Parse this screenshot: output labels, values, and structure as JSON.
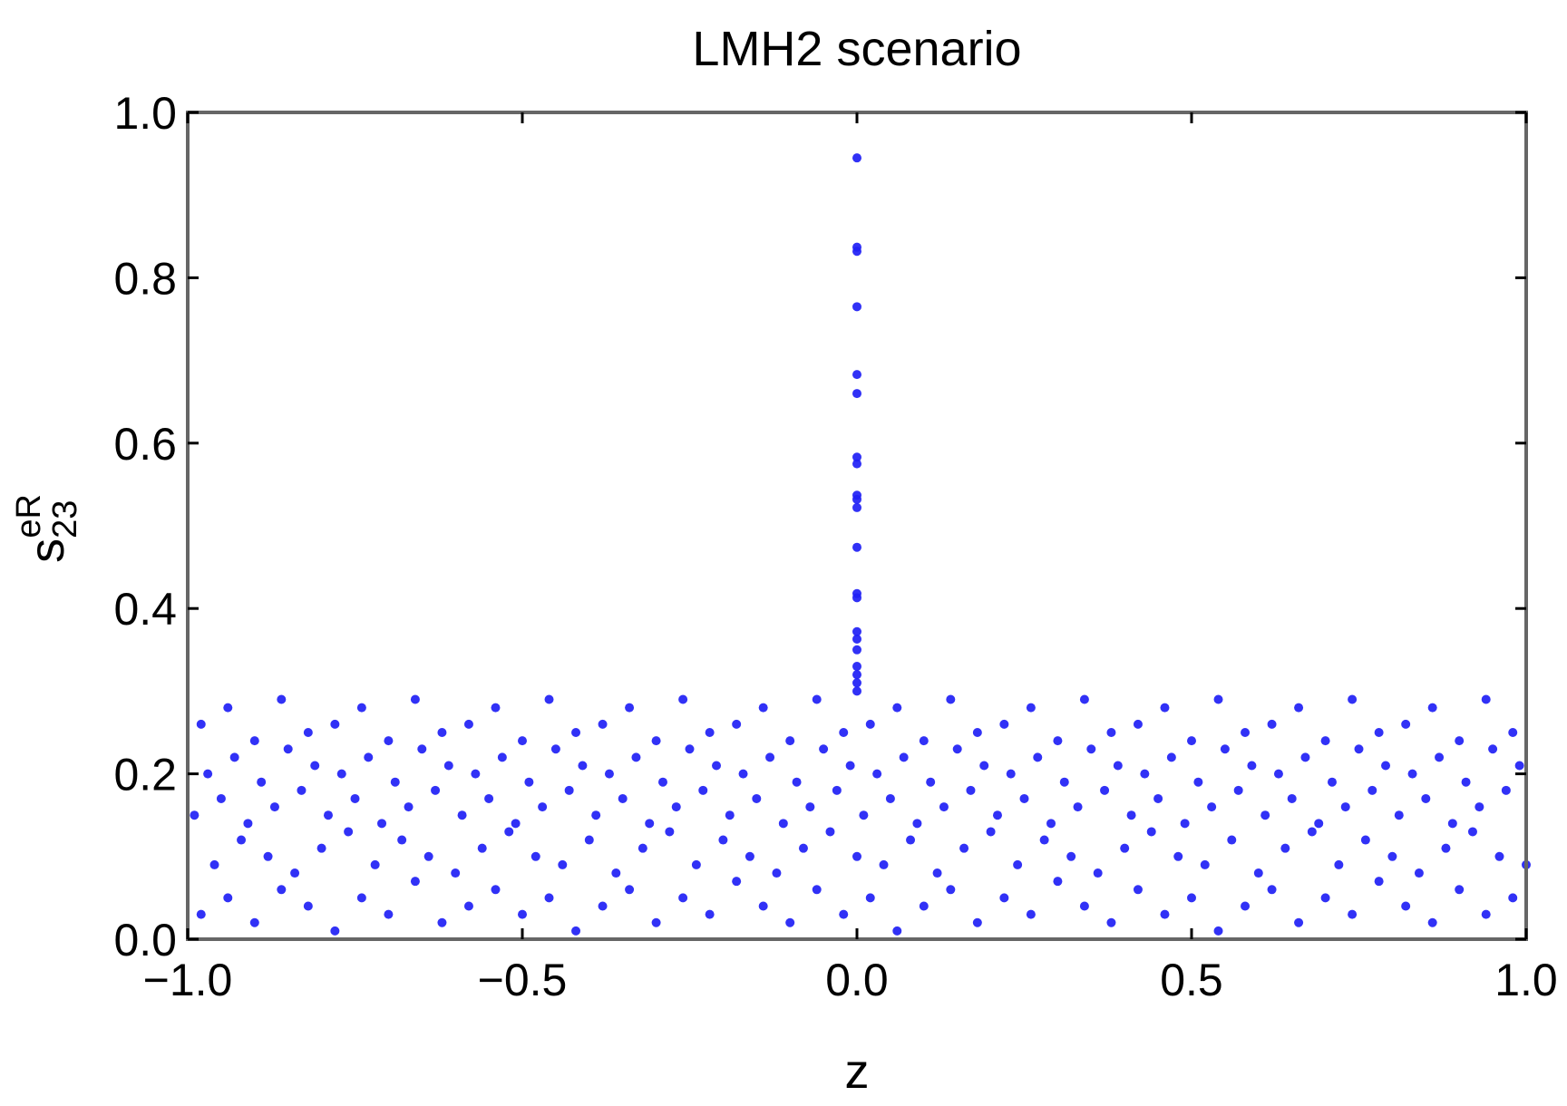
{
  "chart_data": {
    "type": "scatter",
    "title": "LMH2 scenario",
    "x_label": "z",
    "y_label": {
      "base": "s",
      "sub": "23",
      "sup": "eR"
    },
    "color": "#1f1ff5",
    "xlim": [
      -1,
      1
    ],
    "ylim": [
      0,
      1
    ],
    "xticks": [
      {
        "value": -1,
        "label": "−1.0"
      },
      {
        "value": -0.5,
        "label": "−0.5"
      },
      {
        "value": 0,
        "label": "0.0"
      },
      {
        "value": 0.5,
        "label": "0.5"
      },
      {
        "value": 1,
        "label": "1.0"
      }
    ],
    "yticks": [
      {
        "value": 0,
        "label": "0.0"
      },
      {
        "value": 0.2,
        "label": "0.2"
      },
      {
        "value": 0.4,
        "label": "0.4"
      },
      {
        "value": 0.6,
        "label": "0.6"
      },
      {
        "value": 0.8,
        "label": "0.8"
      },
      {
        "value": 1,
        "label": "1.0"
      }
    ],
    "x": [
      -0.98,
      -0.94,
      -0.9,
      -0.86,
      -0.82,
      -0.78,
      -0.74,
      -0.7,
      -0.66,
      -0.62,
      -0.58,
      -0.54,
      -0.5,
      -0.46,
      -0.42,
      -0.38,
      -0.34,
      -0.3,
      -0.26,
      -0.22,
      -0.18,
      -0.14,
      -0.1,
      -0.06,
      -0.02,
      0.02,
      0.06,
      0.1,
      0.14,
      0.18,
      0.22,
      0.26,
      0.3,
      0.34,
      0.38,
      0.42,
      0.46,
      0.5,
      0.54,
      0.58,
      0.62,
      0.66,
      0.7,
      0.74,
      0.78,
      0.82,
      0.86,
      0.9,
      0.94,
      0.98,
      -0.96,
      -0.92,
      -0.88,
      -0.84,
      -0.8,
      -0.76,
      -0.72,
      -0.68,
      -0.64,
      -0.6,
      -0.56,
      -0.52,
      -0.48,
      -0.44,
      -0.4,
      -0.36,
      -0.32,
      -0.28,
      -0.24,
      -0.2,
      -0.16,
      -0.12,
      -0.08,
      -0.04,
      0,
      0.04,
      0.08,
      0.12,
      0.16,
      0.2,
      0.24,
      0.28,
      0.32,
      0.36,
      0.4,
      0.44,
      0.48,
      0.52,
      0.56,
      0.6,
      0.64,
      0.68,
      0.72,
      0.76,
      0.8,
      0.84,
      0.88,
      0.92,
      0.96,
      1.0,
      -0.99,
      -0.95,
      -0.91,
      -0.87,
      -0.83,
      -0.79,
      -0.75,
      -0.71,
      -0.67,
      -0.63,
      -0.59,
      -0.55,
      -0.51,
      -0.47,
      -0.43,
      -0.39,
      -0.35,
      -0.31,
      -0.27,
      -0.23,
      -0.19,
      -0.15,
      -0.11,
      -0.07,
      -0.03,
      0.01,
      0.05,
      0.09,
      0.13,
      0.17,
      0.21,
      0.25,
      0.29,
      0.33,
      0.37,
      0.41,
      0.45,
      0.49,
      0.53,
      0.57,
      0.61,
      0.65,
      0.69,
      0.73,
      0.77,
      0.81,
      0.85,
      0.89,
      0.93,
      0.97,
      -0.97,
      -0.93,
      -0.89,
      -0.85,
      -0.81,
      -0.77,
      -0.73,
      -0.69,
      -0.65,
      -0.61,
      -0.57,
      -0.53,
      -0.49,
      -0.45,
      -0.41,
      -0.37,
      -0.33,
      -0.29,
      -0.25,
      -0.21,
      -0.17,
      -0.13,
      -0.09,
      -0.05,
      -0.01,
      0.03,
      0.07,
      0.11,
      0.15,
      0.19,
      0.23,
      0.27,
      0.31,
      0.35,
      0.39,
      0.43,
      0.47,
      0.51,
      0.55,
      0.59,
      0.63,
      0.67,
      0.71,
      0.75,
      0.79,
      0.83,
      0.87,
      0.91,
      0.95,
      0.99,
      -0.98,
      -0.94,
      -0.9,
      -0.86,
      -0.82,
      -0.78,
      -0.74,
      -0.7,
      -0.66,
      -0.62,
      -0.58,
      -0.54,
      -0.5,
      -0.46,
      -0.42,
      -0.38,
      -0.34,
      -0.3,
      -0.26,
      -0.22,
      -0.18,
      -0.14,
      -0.1,
      -0.06,
      -0.02,
      0.02,
      0.06,
      0.1,
      0.14,
      0.18,
      0.22,
      0.26,
      0.3,
      0.34,
      0.38,
      0.42,
      0.46,
      0.5,
      0.54,
      0.58,
      0.62,
      0.66,
      0.7,
      0.74,
      0.78,
      0.82,
      0.86,
      0.9,
      0.94,
      0.98,
      0,
      0,
      0,
      0,
      0,
      0,
      0,
      0,
      0,
      0,
      0,
      0,
      0,
      0,
      0,
      0,
      0,
      0,
      0,
      0,
      0
    ],
    "y": [
      0.03,
      0.05,
      0.02,
      0.06,
      0.04,
      0.01,
      0.05,
      0.03,
      0.07,
      0.02,
      0.04,
      0.06,
      0.03,
      0.05,
      0.01,
      0.04,
      0.06,
      0.02,
      0.05,
      0.03,
      0.07,
      0.04,
      0.02,
      0.06,
      0.03,
      0.05,
      0.01,
      0.04,
      0.06,
      0.02,
      0.05,
      0.03,
      0.07,
      0.04,
      0.02,
      0.06,
      0.03,
      0.05,
      0.01,
      0.04,
      0.06,
      0.02,
      0.05,
      0.03,
      0.07,
      0.04,
      0.02,
      0.06,
      0.03,
      0.05,
      0.09,
      0.12,
      0.1,
      0.08,
      0.11,
      0.13,
      0.09,
      0.12,
      0.1,
      0.08,
      0.11,
      0.13,
      0.1,
      0.09,
      0.12,
      0.08,
      0.11,
      0.13,
      0.09,
      0.12,
      0.1,
      0.08,
      0.11,
      0.13,
      0.1,
      0.09,
      0.12,
      0.08,
      0.11,
      0.13,
      0.09,
      0.12,
      0.1,
      0.08,
      0.11,
      0.13,
      0.1,
      0.09,
      0.12,
      0.08,
      0.11,
      0.13,
      0.09,
      0.12,
      0.1,
      0.08,
      0.11,
      0.13,
      0.1,
      0.09,
      0.15,
      0.17,
      0.14,
      0.16,
      0.18,
      0.15,
      0.17,
      0.14,
      0.16,
      0.18,
      0.15,
      0.17,
      0.14,
      0.16,
      0.18,
      0.15,
      0.17,
      0.14,
      0.16,
      0.18,
      0.15,
      0.17,
      0.14,
      0.16,
      0.18,
      0.15,
      0.17,
      0.14,
      0.16,
      0.18,
      0.15,
      0.17,
      0.14,
      0.16,
      0.18,
      0.15,
      0.17,
      0.14,
      0.16,
      0.18,
      0.15,
      0.17,
      0.14,
      0.16,
      0.18,
      0.15,
      0.17,
      0.14,
      0.16,
      0.18,
      0.2,
      0.22,
      0.19,
      0.23,
      0.21,
      0.2,
      0.22,
      0.19,
      0.23,
      0.21,
      0.2,
      0.22,
      0.19,
      0.23,
      0.21,
      0.2,
      0.22,
      0.19,
      0.23,
      0.21,
      0.2,
      0.22,
      0.19,
      0.23,
      0.21,
      0.2,
      0.22,
      0.19,
      0.23,
      0.21,
      0.2,
      0.22,
      0.19,
      0.23,
      0.21,
      0.2,
      0.22,
      0.19,
      0.23,
      0.21,
      0.2,
      0.22,
      0.19,
      0.23,
      0.21,
      0.2,
      0.22,
      0.19,
      0.23,
      0.21,
      0.26,
      0.28,
      0.24,
      0.29,
      0.25,
      0.26,
      0.28,
      0.24,
      0.29,
      0.25,
      0.26,
      0.28,
      0.24,
      0.29,
      0.25,
      0.26,
      0.28,
      0.24,
      0.29,
      0.25,
      0.26,
      0.28,
      0.24,
      0.29,
      0.25,
      0.26,
      0.28,
      0.24,
      0.29,
      0.25,
      0.26,
      0.28,
      0.24,
      0.29,
      0.25,
      0.26,
      0.28,
      0.24,
      0.29,
      0.25,
      0.26,
      0.28,
      0.24,
      0.29,
      0.25,
      0.26,
      0.28,
      0.24,
      0.29,
      0.25,
      0.945,
      0.837,
      0.832,
      0.765,
      0.683,
      0.66,
      0.583,
      0.575,
      0.537,
      0.532,
      0.522,
      0.474,
      0.418,
      0.413,
      0.372,
      0.363,
      0.35,
      0.33,
      0.32,
      0.31,
      0.3
    ]
  }
}
